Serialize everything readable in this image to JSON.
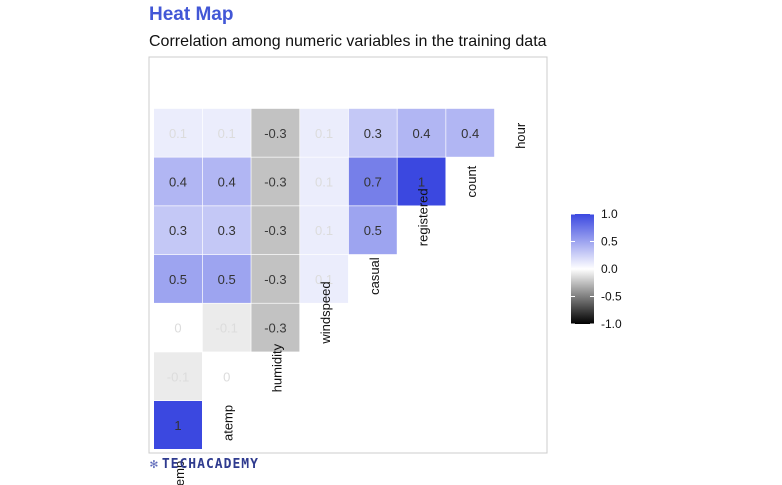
{
  "header": {
    "title": "Heat Map",
    "subtitle": "Correlation among numeric variables in the training data"
  },
  "brand": {
    "text": "TECHACADEMY",
    "icon": "gear-logo-icon"
  },
  "colors": {
    "accent": "#4257d6",
    "high": "#3b48e0",
    "mid": "#ffffff",
    "low": "#000000"
  },
  "chart_data": {
    "type": "heatmap",
    "title": "",
    "variables": [
      "temp",
      "atemp",
      "humidity",
      "windspeed",
      "casual",
      "registered",
      "count",
      "hour"
    ],
    "layout": "lower-triangle",
    "cells": [
      {
        "row": "atemp",
        "col": "temp",
        "value": 1
      },
      {
        "row": "humidity",
        "col": "temp",
        "value": -0.1
      },
      {
        "row": "humidity",
        "col": "atemp",
        "value": 0
      },
      {
        "row": "windspeed",
        "col": "temp",
        "value": 0
      },
      {
        "row": "windspeed",
        "col": "atemp",
        "value": -0.1
      },
      {
        "row": "windspeed",
        "col": "humidity",
        "value": -0.3
      },
      {
        "row": "casual",
        "col": "temp",
        "value": 0.5
      },
      {
        "row": "casual",
        "col": "atemp",
        "value": 0.5
      },
      {
        "row": "casual",
        "col": "humidity",
        "value": -0.3
      },
      {
        "row": "casual",
        "col": "windspeed",
        "value": 0.1
      },
      {
        "row": "registered",
        "col": "temp",
        "value": 0.3
      },
      {
        "row": "registered",
        "col": "atemp",
        "value": 0.3
      },
      {
        "row": "registered",
        "col": "humidity",
        "value": -0.3
      },
      {
        "row": "registered",
        "col": "windspeed",
        "value": 0.1
      },
      {
        "row": "registered",
        "col": "casual",
        "value": 0.5
      },
      {
        "row": "count",
        "col": "temp",
        "value": 0.4
      },
      {
        "row": "count",
        "col": "atemp",
        "value": 0.4
      },
      {
        "row": "count",
        "col": "humidity",
        "value": -0.3
      },
      {
        "row": "count",
        "col": "windspeed",
        "value": 0.1
      },
      {
        "row": "count",
        "col": "casual",
        "value": 0.7
      },
      {
        "row": "count",
        "col": "registered",
        "value": 1
      },
      {
        "row": "hour",
        "col": "temp",
        "value": 0.1
      },
      {
        "row": "hour",
        "col": "atemp",
        "value": 0.1
      },
      {
        "row": "hour",
        "col": "humidity",
        "value": -0.3
      },
      {
        "row": "hour",
        "col": "windspeed",
        "value": 0.1
      },
      {
        "row": "hour",
        "col": "casual",
        "value": 0.3
      },
      {
        "row": "hour",
        "col": "registered",
        "value": 0.4
      },
      {
        "row": "hour",
        "col": "count",
        "value": 0.4
      }
    ],
    "legend": {
      "position": "right",
      "min": -1,
      "max": 1,
      "ticks": [
        1.0,
        0.5,
        0.0,
        -0.5,
        -1.0
      ],
      "tick_labels": [
        "1.0",
        "0.5",
        "0.0",
        "-0.5",
        "-1.0"
      ]
    },
    "grid": false
  }
}
